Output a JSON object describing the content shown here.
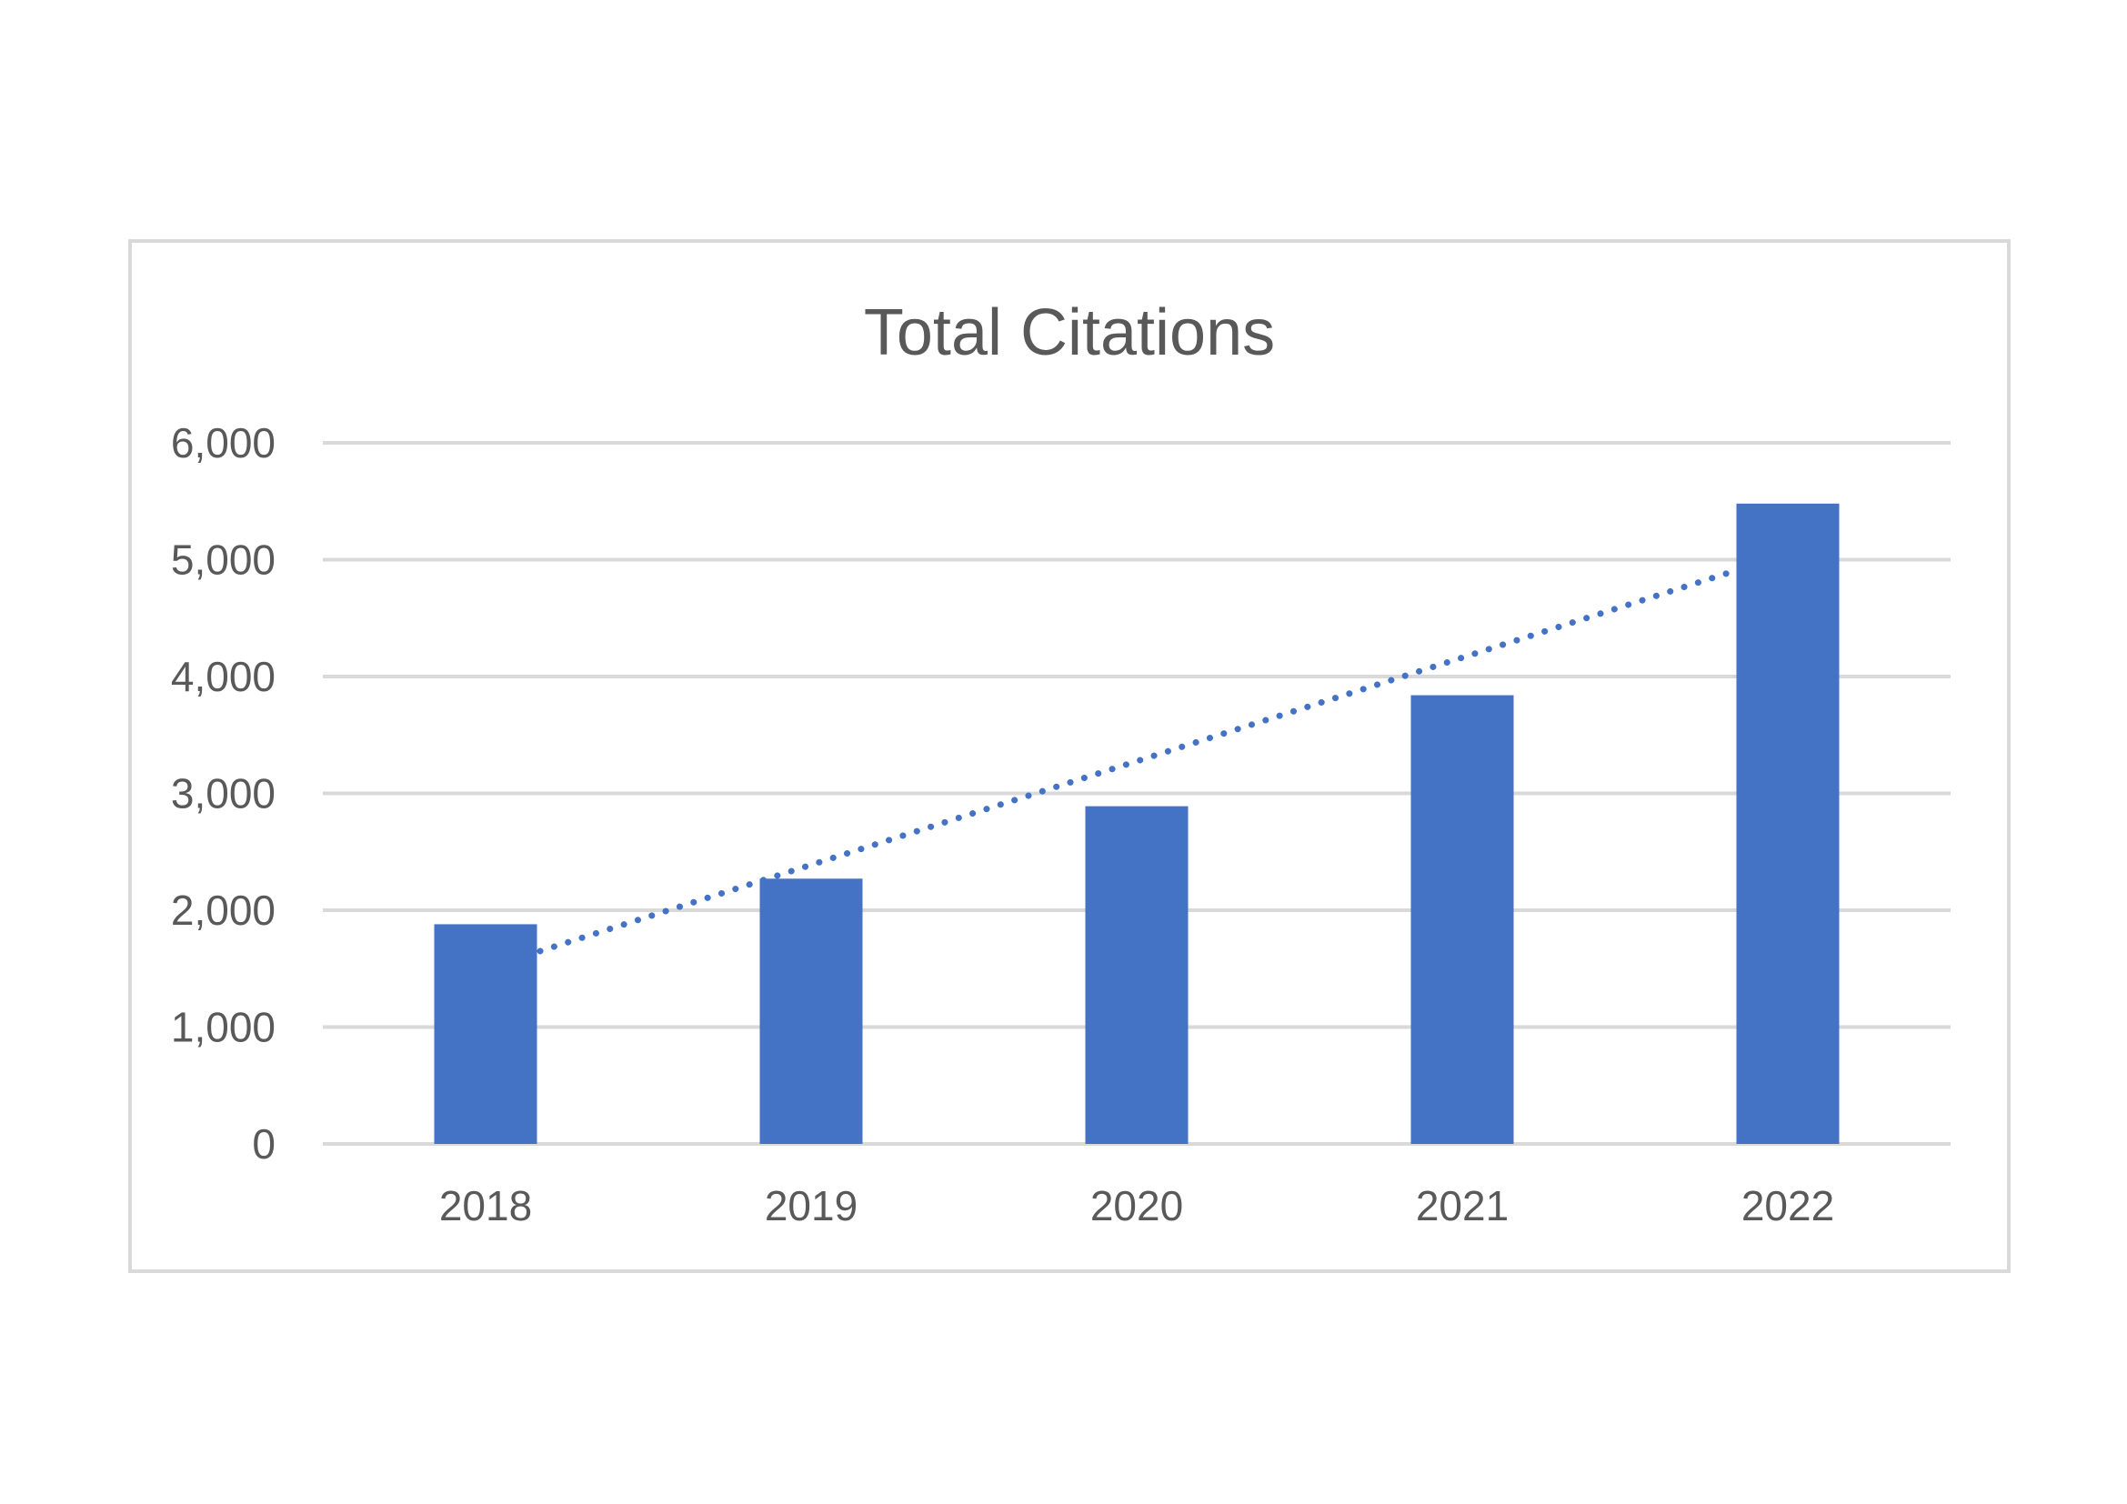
{
  "chart_data": {
    "type": "bar",
    "title": "Total Citations",
    "xlabel": "",
    "ylabel": "",
    "categories": [
      "2018",
      "2019",
      "2020",
      "2021",
      "2022"
    ],
    "series": [
      {
        "values": [
          1880,
          2270,
          2890,
          3840,
          5480
        ],
        "color": "#4472C4"
      }
    ],
    "trendline": {
      "type": "linear",
      "style": "dotted",
      "color": "#4472C4",
      "start_value": 1650,
      "end_value": 4900
    },
    "ylim": [
      0,
      6000
    ],
    "yticks": [
      0,
      1000,
      2000,
      3000,
      4000,
      5000,
      6000
    ],
    "ytick_labels": [
      "0",
      "1,000",
      "2,000",
      "3,000",
      "4,000",
      "5,000",
      "6,000"
    ],
    "grid": true,
    "legend": "none"
  }
}
